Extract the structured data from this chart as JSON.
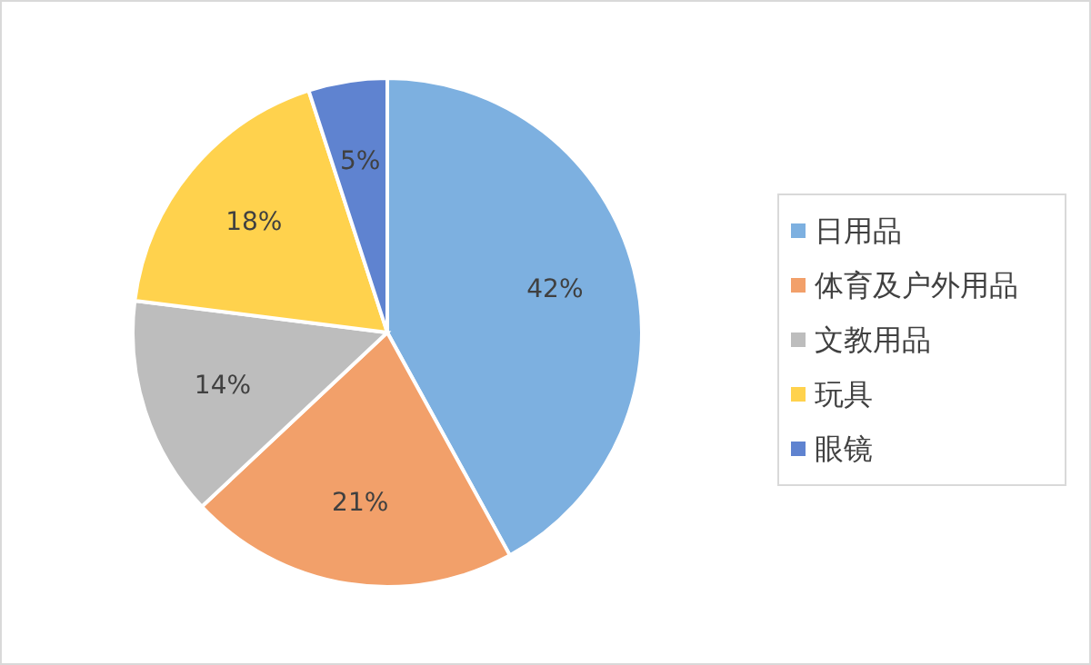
{
  "chart_data": {
    "type": "pie",
    "categories": [
      "日用品",
      "体育及户外用品",
      "文教用品",
      "玩具",
      "眼镜"
    ],
    "values": [
      42,
      21,
      14,
      18,
      5
    ],
    "value_labels": [
      "42%",
      "21%",
      "14%",
      "18%",
      "5%"
    ],
    "colors": [
      "#7db0e0",
      "#f2a06a",
      "#bdbdbd",
      "#ffd24d",
      "#5f83d0"
    ],
    "legend": "right"
  }
}
